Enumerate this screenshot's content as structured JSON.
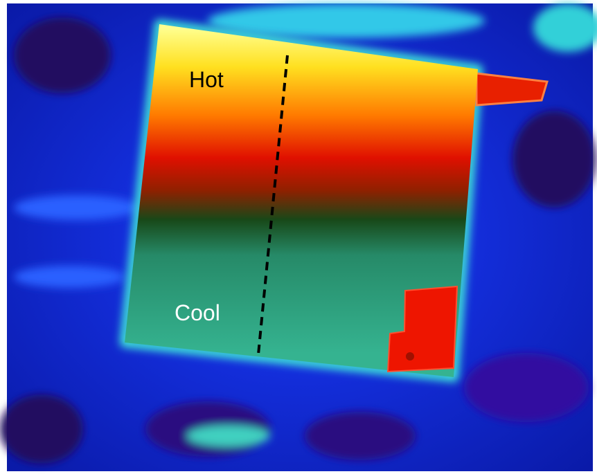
{
  "labels": {
    "hot": "Hot",
    "cool": "Cool"
  }
}
